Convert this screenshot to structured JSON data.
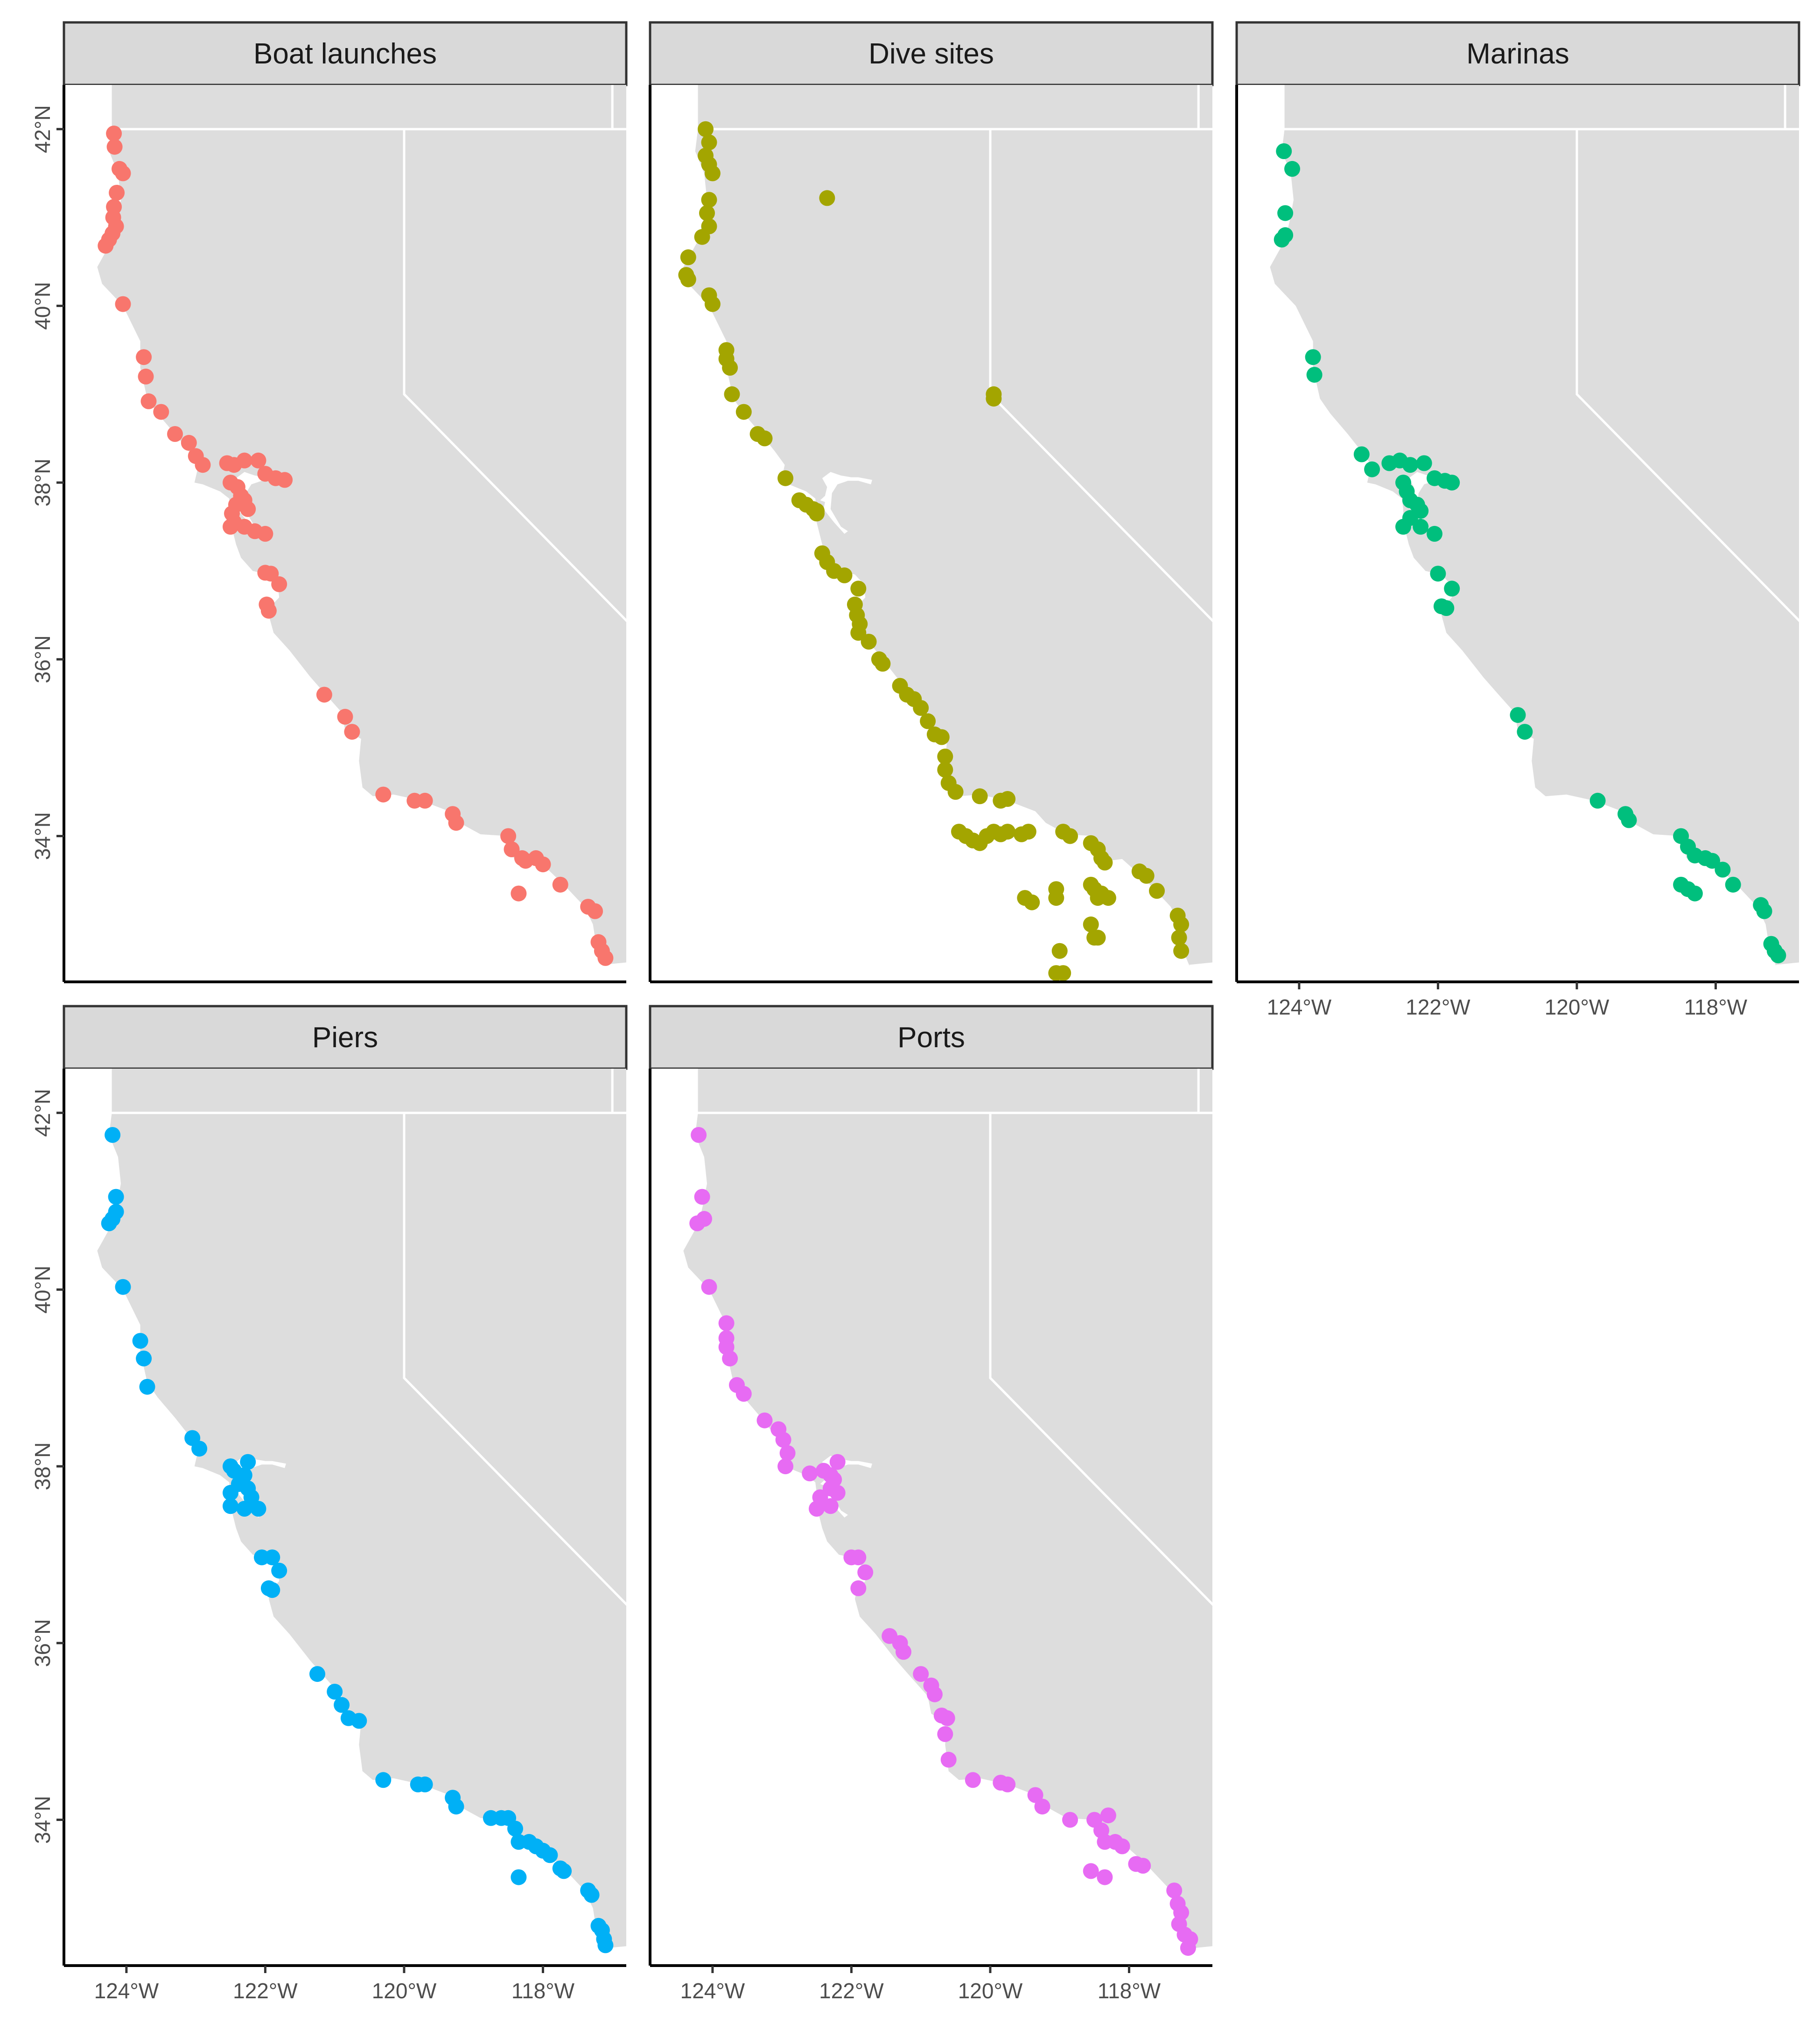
{
  "facets": [
    {
      "id": "boat-launches",
      "label": "Boat launches",
      "color": "#F8766D",
      "points": [
        [
          -124.18,
          41.95
        ],
        [
          -124.17,
          41.8
        ],
        [
          -124.1,
          41.55
        ],
        [
          -124.05,
          41.5
        ],
        [
          -124.14,
          41.28
        ],
        [
          -124.18,
          41.12
        ],
        [
          -124.19,
          41.0
        ],
        [
          -124.15,
          40.9
        ],
        [
          -124.2,
          40.82
        ],
        [
          -124.25,
          40.75
        ],
        [
          -124.3,
          40.68
        ],
        [
          -124.05,
          40.02
        ],
        [
          -123.75,
          39.42
        ],
        [
          -123.72,
          39.2
        ],
        [
          -123.68,
          38.92
        ],
        [
          -123.5,
          38.8
        ],
        [
          -123.3,
          38.55
        ],
        [
          -123.1,
          38.45
        ],
        [
          -123.0,
          38.3
        ],
        [
          -122.9,
          38.2
        ],
        [
          -122.55,
          38.22
        ],
        [
          -122.45,
          38.2
        ],
        [
          -122.3,
          38.25
        ],
        [
          -122.1,
          38.25
        ],
        [
          -122.0,
          38.1
        ],
        [
          -121.85,
          38.05
        ],
        [
          -121.72,
          38.03
        ],
        [
          -122.5,
          38.0
        ],
        [
          -122.4,
          37.95
        ],
        [
          -122.35,
          37.85
        ],
        [
          -122.3,
          37.8
        ],
        [
          -122.25,
          37.7
        ],
        [
          -122.42,
          37.75
        ],
        [
          -122.48,
          37.65
        ],
        [
          -122.45,
          37.55
        ],
        [
          -122.5,
          37.5
        ],
        [
          -122.3,
          37.5
        ],
        [
          -122.15,
          37.45
        ],
        [
          -122.0,
          37.42
        ],
        [
          -122.0,
          36.98
        ],
        [
          -121.92,
          36.97
        ],
        [
          -121.8,
          36.85
        ],
        [
          -121.98,
          36.62
        ],
        [
          -121.95,
          36.55
        ],
        [
          -121.15,
          35.6
        ],
        [
          -120.85,
          35.35
        ],
        [
          -120.75,
          35.18
        ],
        [
          -120.3,
          34.47
        ],
        [
          -119.85,
          34.4
        ],
        [
          -119.7,
          34.4
        ],
        [
          -119.3,
          34.25
        ],
        [
          -119.25,
          34.15
        ],
        [
          -118.5,
          34.0
        ],
        [
          -118.45,
          33.85
        ],
        [
          -118.3,
          33.75
        ],
        [
          -118.1,
          33.75
        ],
        [
          -118.0,
          33.68
        ],
        [
          -118.25,
          33.72
        ],
        [
          -117.75,
          33.45
        ],
        [
          -118.35,
          33.35
        ],
        [
          -117.35,
          33.2
        ],
        [
          -117.25,
          33.15
        ],
        [
          -117.2,
          32.8
        ],
        [
          -117.15,
          32.7
        ],
        [
          -117.1,
          32.62
        ]
      ]
    },
    {
      "id": "dive-sites",
      "label": "Dive sites",
      "color": "#A3A500",
      "points": [
        [
          -124.1,
          42.0
        ],
        [
          -124.05,
          41.85
        ],
        [
          -124.1,
          41.7
        ],
        [
          -124.05,
          41.6
        ],
        [
          -124.0,
          41.5
        ],
        [
          -124.05,
          41.2
        ],
        [
          -124.08,
          41.05
        ],
        [
          -124.05,
          40.9
        ],
        [
          -124.15,
          40.78
        ],
        [
          -124.35,
          40.55
        ],
        [
          -124.38,
          40.35
        ],
        [
          -124.35,
          40.3
        ],
        [
          -124.05,
          40.12
        ],
        [
          -124.0,
          40.02
        ],
        [
          -123.8,
          39.5
        ],
        [
          -123.8,
          39.4
        ],
        [
          -123.75,
          39.3
        ],
        [
          -123.72,
          39.0
        ],
        [
          -123.55,
          38.8
        ],
        [
          -123.35,
          38.55
        ],
        [
          -123.25,
          38.5
        ],
        [
          -122.95,
          38.05
        ],
        [
          -122.75,
          37.8
        ],
        [
          -122.65,
          37.75
        ],
        [
          -122.55,
          37.7
        ],
        [
          -122.5,
          37.65
        ],
        [
          -122.42,
          37.2
        ],
        [
          -122.35,
          37.1
        ],
        [
          -122.25,
          37.0
        ],
        [
          -122.1,
          36.95
        ],
        [
          -121.9,
          36.8
        ],
        [
          -121.95,
          36.62
        ],
        [
          -121.92,
          36.5
        ],
        [
          -121.88,
          36.4
        ],
        [
          -121.9,
          36.3
        ],
        [
          -121.75,
          36.2
        ],
        [
          -121.6,
          36.0
        ],
        [
          -121.55,
          35.95
        ],
        [
          -121.3,
          35.7
        ],
        [
          -121.2,
          35.6
        ],
        [
          -121.1,
          35.55
        ],
        [
          -121.0,
          35.45
        ],
        [
          -120.9,
          35.3
        ],
        [
          -120.8,
          35.15
        ],
        [
          -120.7,
          35.12
        ],
        [
          -120.65,
          34.9
        ],
        [
          -120.65,
          34.75
        ],
        [
          -120.6,
          34.6
        ],
        [
          -120.5,
          34.5
        ],
        [
          -120.45,
          34.05
        ],
        [
          -120.35,
          34.0
        ],
        [
          -120.25,
          33.95
        ],
        [
          -120.15,
          33.92
        ],
        [
          -120.05,
          34.0
        ],
        [
          -119.95,
          34.05
        ],
        [
          -119.85,
          34.02
        ],
        [
          -119.75,
          34.05
        ],
        [
          -119.55,
          34.02
        ],
        [
          -119.45,
          34.05
        ],
        [
          -120.15,
          34.45
        ],
        [
          -119.85,
          34.4
        ],
        [
          -119.75,
          34.42
        ],
        [
          -118.95,
          34.05
        ],
        [
          -118.85,
          34.0
        ],
        [
          -118.55,
          33.92
        ],
        [
          -118.45,
          33.85
        ],
        [
          -118.4,
          33.75
        ],
        [
          -118.35,
          33.7
        ],
        [
          -118.55,
          33.45
        ],
        [
          -118.5,
          33.4
        ],
        [
          -118.4,
          33.35
        ],
        [
          -118.3,
          33.3
        ],
        [
          -118.45,
          33.3
        ],
        [
          -119.5,
          33.3
        ],
        [
          -119.4,
          33.25
        ],
        [
          -119.05,
          33.4
        ],
        [
          -119.05,
          33.3
        ],
        [
          -118.55,
          33.0
        ],
        [
          -118.5,
          32.85
        ],
        [
          -118.45,
          32.85
        ],
        [
          -119.0,
          32.7
        ],
        [
          -119.05,
          32.45
        ],
        [
          -118.95,
          32.45
        ],
        [
          -117.85,
          33.6
        ],
        [
          -117.75,
          33.55
        ],
        [
          -117.6,
          33.38
        ],
        [
          -117.3,
          33.1
        ],
        [
          -117.25,
          33.0
        ],
        [
          -117.28,
          32.85
        ],
        [
          -117.25,
          32.7
        ],
        [
          -122.35,
          41.22
        ],
        [
          -119.95,
          39.0
        ],
        [
          -119.95,
          38.95
        ],
        [
          -122.5,
          37.68
        ]
      ]
    },
    {
      "id": "marinas",
      "label": "Marinas",
      "color": "#00BF7D",
      "points": [
        [
          -124.22,
          41.75
        ],
        [
          -124.1,
          41.55
        ],
        [
          -124.2,
          41.05
        ],
        [
          -124.2,
          40.8
        ],
        [
          -124.25,
          40.75
        ],
        [
          -123.8,
          39.42
        ],
        [
          -123.78,
          39.22
        ],
        [
          -123.1,
          38.32
        ],
        [
          -122.95,
          38.15
        ],
        [
          -122.7,
          38.22
        ],
        [
          -122.55,
          38.25
        ],
        [
          -122.4,
          38.2
        ],
        [
          -122.2,
          38.22
        ],
        [
          -122.05,
          38.05
        ],
        [
          -121.9,
          38.02
        ],
        [
          -121.8,
          38.0
        ],
        [
          -122.5,
          38.0
        ],
        [
          -122.45,
          37.9
        ],
        [
          -122.4,
          37.8
        ],
        [
          -122.3,
          37.75
        ],
        [
          -122.25,
          37.68
        ],
        [
          -122.4,
          37.6
        ],
        [
          -122.5,
          37.5
        ],
        [
          -122.25,
          37.5
        ],
        [
          -122.05,
          37.42
        ],
        [
          -122.0,
          36.97
        ],
        [
          -121.8,
          36.8
        ],
        [
          -121.95,
          36.6
        ],
        [
          -121.88,
          36.58
        ],
        [
          -120.85,
          35.37
        ],
        [
          -120.75,
          35.18
        ],
        [
          -119.7,
          34.4
        ],
        [
          -119.3,
          34.25
        ],
        [
          -119.25,
          34.18
        ],
        [
          -118.5,
          34.0
        ],
        [
          -118.4,
          33.88
        ],
        [
          -118.3,
          33.78
        ],
        [
          -118.15,
          33.75
        ],
        [
          -118.05,
          33.72
        ],
        [
          -117.9,
          33.62
        ],
        [
          -117.75,
          33.45
        ],
        [
          -118.5,
          33.45
        ],
        [
          -118.4,
          33.4
        ],
        [
          -118.3,
          33.35
        ],
        [
          -117.35,
          33.22
        ],
        [
          -117.3,
          33.15
        ],
        [
          -117.2,
          32.78
        ],
        [
          -117.15,
          32.7
        ],
        [
          -117.1,
          32.65
        ]
      ]
    },
    {
      "id": "piers",
      "label": "Piers",
      "color": "#00B0F6",
      "points": [
        [
          -124.2,
          41.75
        ],
        [
          -124.15,
          41.05
        ],
        [
          -124.15,
          40.88
        ],
        [
          -124.2,
          40.8
        ],
        [
          -124.25,
          40.75
        ],
        [
          -124.05,
          40.03
        ],
        [
          -123.8,
          39.42
        ],
        [
          -123.75,
          39.22
        ],
        [
          -123.7,
          38.9
        ],
        [
          -123.05,
          38.32
        ],
        [
          -122.95,
          38.2
        ],
        [
          -122.5,
          38.0
        ],
        [
          -122.45,
          37.95
        ],
        [
          -122.25,
          38.05
        ],
        [
          -122.3,
          37.9
        ],
        [
          -122.38,
          37.8
        ],
        [
          -122.25,
          37.75
        ],
        [
          -122.2,
          37.65
        ],
        [
          -122.5,
          37.7
        ],
        [
          -122.5,
          37.55
        ],
        [
          -122.3,
          37.52
        ],
        [
          -122.1,
          37.52
        ],
        [
          -122.05,
          36.97
        ],
        [
          -121.9,
          36.97
        ],
        [
          -121.8,
          36.82
        ],
        [
          -121.95,
          36.62
        ],
        [
          -121.9,
          36.6
        ],
        [
          -121.25,
          35.65
        ],
        [
          -121.0,
          35.45
        ],
        [
          -120.9,
          35.3
        ],
        [
          -120.8,
          35.15
        ],
        [
          -120.65,
          35.12
        ],
        [
          -120.3,
          34.45
        ],
        [
          -119.8,
          34.4
        ],
        [
          -119.7,
          34.4
        ],
        [
          -119.3,
          34.25
        ],
        [
          -119.25,
          34.15
        ],
        [
          -118.75,
          34.02
        ],
        [
          -118.6,
          34.02
        ],
        [
          -118.5,
          34.02
        ],
        [
          -118.4,
          33.9
        ],
        [
          -118.35,
          33.75
        ],
        [
          -118.2,
          33.75
        ],
        [
          -118.1,
          33.7
        ],
        [
          -118.0,
          33.65
        ],
        [
          -117.9,
          33.6
        ],
        [
          -117.75,
          33.45
        ],
        [
          -117.7,
          33.42
        ],
        [
          -118.35,
          33.35
        ],
        [
          -117.35,
          33.2
        ],
        [
          -117.3,
          33.15
        ],
        [
          -117.2,
          32.8
        ],
        [
          -117.15,
          32.75
        ],
        [
          -117.12,
          32.65
        ],
        [
          -117.1,
          32.58
        ]
      ]
    },
    {
      "id": "ports",
      "label": "Ports",
      "color": "#E76BF3",
      "points": [
        [
          -124.2,
          41.75
        ],
        [
          -124.15,
          41.05
        ],
        [
          -124.12,
          40.8
        ],
        [
          -124.22,
          40.75
        ],
        [
          -124.05,
          40.03
        ],
        [
          -123.8,
          39.62
        ],
        [
          -123.8,
          39.45
        ],
        [
          -123.8,
          39.35
        ],
        [
          -123.75,
          39.22
        ],
        [
          -123.65,
          38.92
        ],
        [
          -123.55,
          38.82
        ],
        [
          -123.25,
          38.52
        ],
        [
          -123.05,
          38.42
        ],
        [
          -122.98,
          38.3
        ],
        [
          -122.92,
          38.15
        ],
        [
          -122.95,
          38.0
        ],
        [
          -122.6,
          37.92
        ],
        [
          -122.4,
          37.95
        ],
        [
          -122.3,
          37.9
        ],
        [
          -122.2,
          38.05
        ],
        [
          -122.25,
          37.85
        ],
        [
          -122.3,
          37.75
        ],
        [
          -122.2,
          37.7
        ],
        [
          -122.45,
          37.65
        ],
        [
          -122.5,
          37.52
        ],
        [
          -122.3,
          37.55
        ],
        [
          -122.0,
          36.97
        ],
        [
          -121.9,
          36.97
        ],
        [
          -121.8,
          36.8
        ],
        [
          -121.9,
          36.62
        ],
        [
          -121.45,
          36.08
        ],
        [
          -121.3,
          36.0
        ],
        [
          -121.25,
          35.9
        ],
        [
          -121.0,
          35.65
        ],
        [
          -120.85,
          35.52
        ],
        [
          -120.8,
          35.42
        ],
        [
          -120.7,
          35.18
        ],
        [
          -120.62,
          35.15
        ],
        [
          -120.65,
          34.97
        ],
        [
          -120.6,
          34.68
        ],
        [
          -120.25,
          34.45
        ],
        [
          -119.85,
          34.42
        ],
        [
          -119.75,
          34.4
        ],
        [
          -119.35,
          34.28
        ],
        [
          -119.25,
          34.15
        ],
        [
          -118.85,
          34.0
        ],
        [
          -118.5,
          34.0
        ],
        [
          -118.4,
          33.88
        ],
        [
          -118.3,
          34.05
        ],
        [
          -118.35,
          33.75
        ],
        [
          -118.2,
          33.75
        ],
        [
          -118.1,
          33.7
        ],
        [
          -117.9,
          33.5
        ],
        [
          -117.8,
          33.48
        ],
        [
          -118.55,
          33.42
        ],
        [
          -118.35,
          33.35
        ],
        [
          -117.35,
          33.2
        ],
        [
          -117.3,
          33.05
        ],
        [
          -117.25,
          32.95
        ],
        [
          -117.28,
          32.82
        ],
        [
          -117.2,
          32.7
        ],
        [
          -117.12,
          32.65
        ],
        [
          -117.15,
          32.55
        ]
      ]
    }
  ],
  "axes": {
    "x_ticks": [
      {
        "value": -124,
        "label": "124°W"
      },
      {
        "value": -122,
        "label": "122°W"
      },
      {
        "value": -120,
        "label": "120°W"
      },
      {
        "value": -118,
        "label": "118°W"
      }
    ],
    "y_ticks": [
      {
        "value": 42,
        "label": "42°N"
      },
      {
        "value": 40,
        "label": "40°N"
      },
      {
        "value": 38,
        "label": "38°N"
      },
      {
        "value": 36,
        "label": "36°N"
      },
      {
        "value": 34,
        "label": "34°N"
      }
    ],
    "lon_range": [
      -124.9,
      -116.8
    ],
    "lat_range": [
      32.35,
      42.5
    ]
  },
  "colors": {
    "land": "#dddddd",
    "water": "#ffffff",
    "border": "#ffffff",
    "strip": "#d9d9d9"
  }
}
